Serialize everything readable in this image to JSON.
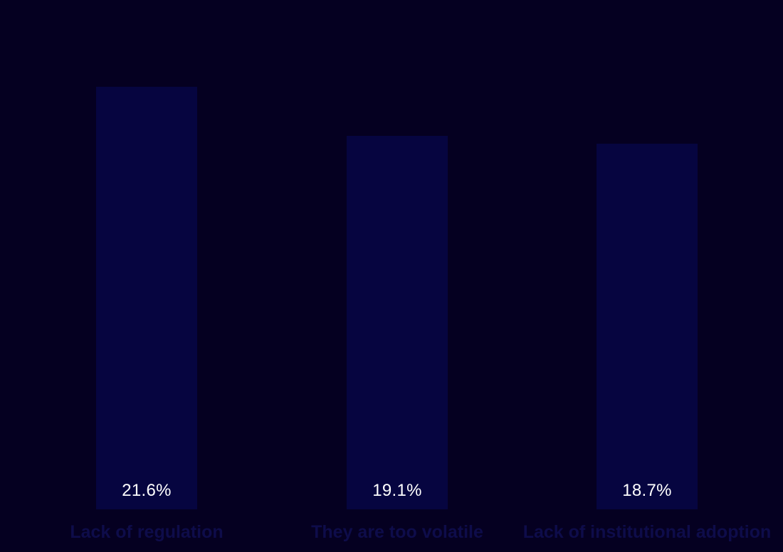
{
  "chart_data": {
    "type": "bar",
    "title": "",
    "xlabel": "",
    "ylabel": "",
    "categories": [
      "Lack of regulation",
      "They are too volatile",
      "Lack of institutional adoption"
    ],
    "values": [
      21.6,
      19.1,
      18.7
    ],
    "value_labels": [
      "21.6%",
      "19.1%",
      "18.7%"
    ],
    "ylim": [
      0,
      22
    ],
    "grid": false,
    "legend": false,
    "value_label_position": "inside-bottom",
    "colors": {
      "background": "#050021",
      "bar_fill": "#060540",
      "value_label": "#ffffff",
      "category_label": "#0e0c4a"
    }
  }
}
